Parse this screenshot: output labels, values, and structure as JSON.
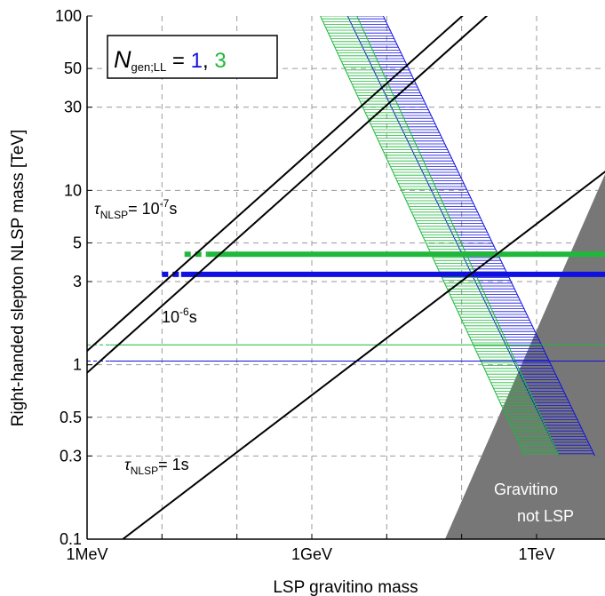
{
  "chart_data": {
    "type": "line",
    "xlabel": "LSP gravitino mass",
    "ylabel": "Right-handed slepton NLSP mass [TeV]",
    "x_scale": "log",
    "y_scale": "log",
    "xlim_GeV": [
      0.001,
      10000
    ],
    "ylim_TeV": [
      0.1,
      100
    ],
    "grid": true,
    "x_ticks": [
      {
        "value": 0.001,
        "label": "1MeV"
      },
      {
        "value": 1,
        "label": "1GeV"
      },
      {
        "value": 1000,
        "label": "1TeV"
      }
    ],
    "x_minor_grid": [
      0.01,
      0.1,
      10,
      100
    ],
    "y_ticks": [
      {
        "value": 0.1,
        "label": "0.1"
      },
      {
        "value": 0.3,
        "label": "0.3"
      },
      {
        "value": 0.5,
        "label": "0.5"
      },
      {
        "value": 1,
        "label": "1"
      },
      {
        "value": 3,
        "label": "3"
      },
      {
        "value": 5,
        "label": "5"
      },
      {
        "value": 10,
        "label": "10"
      },
      {
        "value": 30,
        "label": "30"
      },
      {
        "value": 50,
        "label": "50"
      },
      {
        "value": 100,
        "label": "100"
      }
    ],
    "legend": {
      "prefix": "N",
      "sub": "gen;LL",
      "eq": " = ",
      "val1": "1",
      "comma": ", ",
      "val2": "3",
      "placement": "top-left",
      "color1": "#1010e0",
      "color2": "#1fb83a"
    },
    "lifetime_lines": [
      {
        "id": "tau-1e-7s",
        "points": [
          [
            0.001,
            1.2
          ],
          [
            1000000,
            3400
          ]
        ]
      },
      {
        "id": "tau-1e-6s",
        "points": [
          [
            0.001,
            0.9
          ],
          [
            1000000,
            2550
          ]
        ]
      },
      {
        "id": "tau-1s",
        "points": [
          [
            0.003,
            0.1
          ],
          [
            100000,
            29
          ]
        ]
      }
    ],
    "annotations": {
      "tau1e7": {
        "pre": "τ",
        "sub": "NLSP",
        "mid": "= 10",
        "sup": "-7",
        "post": "s"
      },
      "tau1e6": {
        "pre": "10",
        "sup": "-6",
        "post": "s"
      },
      "tau1": {
        "pre": "τ",
        "sub": "NLSP",
        "post": "= 1s"
      },
      "excluded_line1": "Gravitino",
      "excluded_line2": "not LSP"
    },
    "excluded_region": {
      "label": "Gravitino not LSP",
      "color": "#777777",
      "points": [
        [
          60,
          0.1
        ],
        [
          12000,
          0.1
        ],
        [
          12000,
          18
        ]
      ]
    },
    "bands": [
      {
        "name": "1",
        "color": "#1010e0",
        "left_edge": [
          [
            3,
            100
          ],
          [
            2000,
            0.3
          ]
        ],
        "right_edge": [
          [
            9,
            100
          ],
          [
            6000,
            0.3
          ]
        ]
      },
      {
        "name": "3",
        "color": "#1fb83a",
        "left_edge": [
          [
            1.3,
            100
          ],
          [
            700,
            0.3
          ]
        ],
        "right_edge": [
          [
            4,
            100
          ],
          [
            2000,
            0.3
          ]
        ]
      }
    ],
    "horizontal_lines": [
      {
        "series": "3",
        "color": "#1fb83a",
        "y": 4.3,
        "x": [
          0.02,
          11000
        ],
        "dotted_x": [
          0.02,
          0.04
        ],
        "width": 6
      },
      {
        "series": "1",
        "color": "#1010e0",
        "y": 3.3,
        "x": [
          0.01,
          11000
        ],
        "dotted_x": [
          0.01,
          0.018
        ],
        "width": 6
      },
      {
        "series": "3",
        "color": "#1fb83a",
        "y": 1.3,
        "x": [
          0.001,
          11000
        ],
        "dotted_x": [
          0.001,
          0.002
        ],
        "width": 1
      },
      {
        "series": "1",
        "color": "#1010e0",
        "y": 1.05,
        "x": [
          0.001,
          11000
        ],
        "dotted_x": [
          0.001,
          0.002
        ],
        "width": 1
      }
    ]
  }
}
